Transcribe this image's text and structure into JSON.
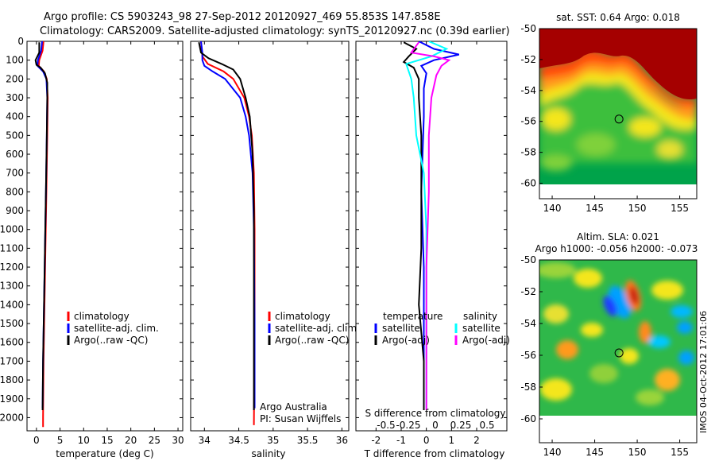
{
  "header": {
    "line1": "Argo profile: CS 5903243_98 27-Sep-2012 20120927_469 55.853S 147.858E",
    "line2": "Climatology: CARS2009. Satellite-adjusted climatology: synTS_20120927.nc (0.39d earlier)"
  },
  "side_text": "IMOS 04-Oct-2012 17:01:06",
  "colors": {
    "climatology": "#ff0000",
    "satellite": "#0000ff",
    "argo": "#000000",
    "sal_satellite": "#00ffff",
    "sal_argo": "#ff00ff"
  },
  "chart_data": [
    {
      "type": "line",
      "name": "temperature-profile",
      "xlabel": "temperature (deg C)",
      "ylabel": "",
      "xlim": [
        -2,
        31
      ],
      "ylim": [
        2070,
        0
      ],
      "xticks": [
        0,
        5,
        10,
        15,
        20,
        25,
        30
      ],
      "yticks": [
        0,
        100,
        200,
        300,
        400,
        500,
        600,
        700,
        800,
        900,
        1000,
        1100,
        1200,
        1300,
        1400,
        1500,
        1600,
        1700,
        1800,
        1900,
        2000
      ],
      "legend": [
        "climatology",
        "satellite-adj. clim.",
        "Argo(..raw -QC)"
      ],
      "series": [
        {
          "name": "climatology",
          "color": "#ff0000",
          "depth": [
            0,
            50,
            100,
            130,
            160,
            200,
            300,
            500,
            800,
            1100,
            1400,
            1700,
            2000,
            2050
          ],
          "values": [
            1.5,
            1.3,
            0.6,
            0.5,
            1.6,
            2.2,
            2.4,
            2.3,
            2.1,
            1.9,
            1.7,
            1.5,
            1.4,
            1.4
          ]
        },
        {
          "name": "satellite-adj. clim.",
          "color": "#0000ff",
          "depth": [
            0,
            50,
            100,
            130,
            160,
            200,
            300,
            500,
            800,
            1100,
            1400,
            1700,
            1950
          ],
          "values": [
            1.2,
            1.0,
            0.3,
            0.2,
            1.4,
            2.1,
            2.3,
            2.2,
            2.0,
            1.8,
            1.6,
            1.4,
            1.3
          ]
        },
        {
          "name": "Argo(..raw -QC)",
          "color": "#000000",
          "depth": [
            5,
            60,
            100,
            125,
            140,
            170,
            220,
            300,
            500,
            800,
            1100,
            1400,
            1700,
            1960
          ],
          "values": [
            0.6,
            0.6,
            -0.2,
            0.0,
            0.9,
            1.8,
            2.3,
            2.3,
            2.2,
            2.0,
            1.8,
            1.6,
            1.4,
            1.3
          ]
        }
      ]
    },
    {
      "type": "line",
      "name": "salinity-profile",
      "xlabel": "salinity",
      "xlim": [
        33.8,
        36.1
      ],
      "ylim": [
        2070,
        0
      ],
      "xticks": [
        34,
        34.5,
        35,
        35.5,
        36
      ],
      "legend": [
        "climatology",
        "satellite-adj. clim.",
        "Argo(..raw -QC)"
      ],
      "annotation": [
        "Argo Australia",
        "PI: Susan Wijffels"
      ],
      "series": [
        {
          "name": "climatology",
          "color": "#ff0000",
          "depth": [
            0,
            80,
            120,
            160,
            200,
            300,
            400,
            500,
            700,
            1000,
            1500,
            2040
          ],
          "values": [
            33.95,
            33.97,
            34.05,
            34.28,
            34.42,
            34.58,
            34.65,
            34.69,
            34.72,
            34.73,
            34.73,
            34.72
          ]
        },
        {
          "name": "satellite-adj. clim.",
          "color": "#0000ff",
          "depth": [
            0,
            60,
            100,
            130,
            160,
            200,
            300,
            400,
            500,
            700,
            1000,
            1500,
            1950
          ],
          "values": [
            33.95,
            33.97,
            33.97,
            34.0,
            34.12,
            34.3,
            34.52,
            34.6,
            34.65,
            34.7,
            34.72,
            34.73,
            34.73
          ]
        },
        {
          "name": "Argo(..raw -QC)",
          "color": "#000000",
          "depth": [
            5,
            60,
            90,
            120,
            150,
            200,
            300,
            400,
            600,
            900,
            1300,
            1700,
            1960
          ],
          "values": [
            33.92,
            33.95,
            34.06,
            34.25,
            34.42,
            34.52,
            34.6,
            34.66,
            34.7,
            34.72,
            34.72,
            34.72,
            34.72
          ]
        }
      ]
    },
    {
      "type": "line",
      "name": "difference-profile",
      "xlabel": "T difference from climatology",
      "xlim_T": [
        -2.8,
        3.2
      ],
      "xticks_T": [
        -2,
        -1,
        0,
        1,
        2
      ],
      "top_axis_label": "S difference from climatology",
      "xticks_S": [
        "-0.5",
        "-0.25",
        "0",
        "0.25",
        "0.5"
      ],
      "legend_temperature": {
        "title": "temperature",
        "items": [
          "satellite",
          "Argo(-adj)"
        ]
      },
      "legend_salinity": {
        "title": "salinity",
        "items": [
          "satellite",
          "Argo(-adj)"
        ]
      },
      "series": [
        {
          "name": "temperature satellite",
          "color": "#0000ff",
          "depth": [
            0,
            40,
            70,
            100,
            130,
            170,
            250,
            400,
            800,
            1200,
            1600,
            1950
          ],
          "values": [
            -0.3,
            0.3,
            1.3,
            0.3,
            -0.2,
            0.0,
            -0.1,
            -0.1,
            -0.2,
            -0.1,
            -0.1,
            -0.1
          ]
        },
        {
          "name": "temperature Argo(-adj)",
          "color": "#000000",
          "depth": [
            5,
            40,
            80,
            110,
            140,
            200,
            300,
            500,
            800,
            1100,
            1400,
            1700,
            1960
          ],
          "values": [
            -0.9,
            -0.4,
            -0.7,
            -0.9,
            -0.5,
            -0.3,
            -0.3,
            -0.2,
            -0.2,
            -0.2,
            -0.3,
            -0.1,
            -0.1
          ]
        },
        {
          "name": "salinity satellite",
          "color": "#00ffff",
          "depth": [
            0,
            40,
            80,
            120,
            200,
            300,
            500,
            700,
            1000,
            1500,
            1950
          ],
          "values": [
            0.1,
            0.8,
            0.2,
            -0.8,
            -0.6,
            -0.5,
            -0.4,
            -0.1,
            0.0,
            0.0,
            0.0
          ]
        },
        {
          "name": "salinity Argo(-adj)",
          "color": "#ff00ff",
          "depth": [
            5,
            60,
            80,
            100,
            130,
            180,
            300,
            500,
            800,
            1200,
            1600,
            1960
          ],
          "values": [
            -0.3,
            -0.6,
            0.3,
            0.9,
            0.6,
            0.4,
            0.2,
            0.1,
            0.1,
            0.0,
            0.0,
            0.0
          ]
        }
      ]
    },
    {
      "type": "heatmap",
      "name": "sst-map",
      "title": "sat. SST: 0.64 Argo: 0.018",
      "xlim": [
        138.5,
        157
      ],
      "ylim": [
        -61,
        -50
      ],
      "xticks": [
        140,
        145,
        150,
        155
      ],
      "yticks": [
        -50,
        -52,
        -54,
        -56,
        -58,
        -60
      ],
      "marker": {
        "lon": 147.86,
        "lat": -55.85
      }
    },
    {
      "type": "heatmap",
      "name": "sla-map",
      "title_lines": [
        "Altim. SLA: 0.021",
        "Argo h1000: -0.056 h2000: -0.073"
      ],
      "xlim": [
        138.5,
        157
      ],
      "ylim": [
        -61.5,
        -50
      ],
      "xticks": [
        140,
        145,
        150,
        155
      ],
      "yticks": [
        -50,
        -52,
        -54,
        -56,
        -58,
        -60
      ],
      "marker": {
        "lon": 147.86,
        "lat": -55.85
      }
    }
  ]
}
